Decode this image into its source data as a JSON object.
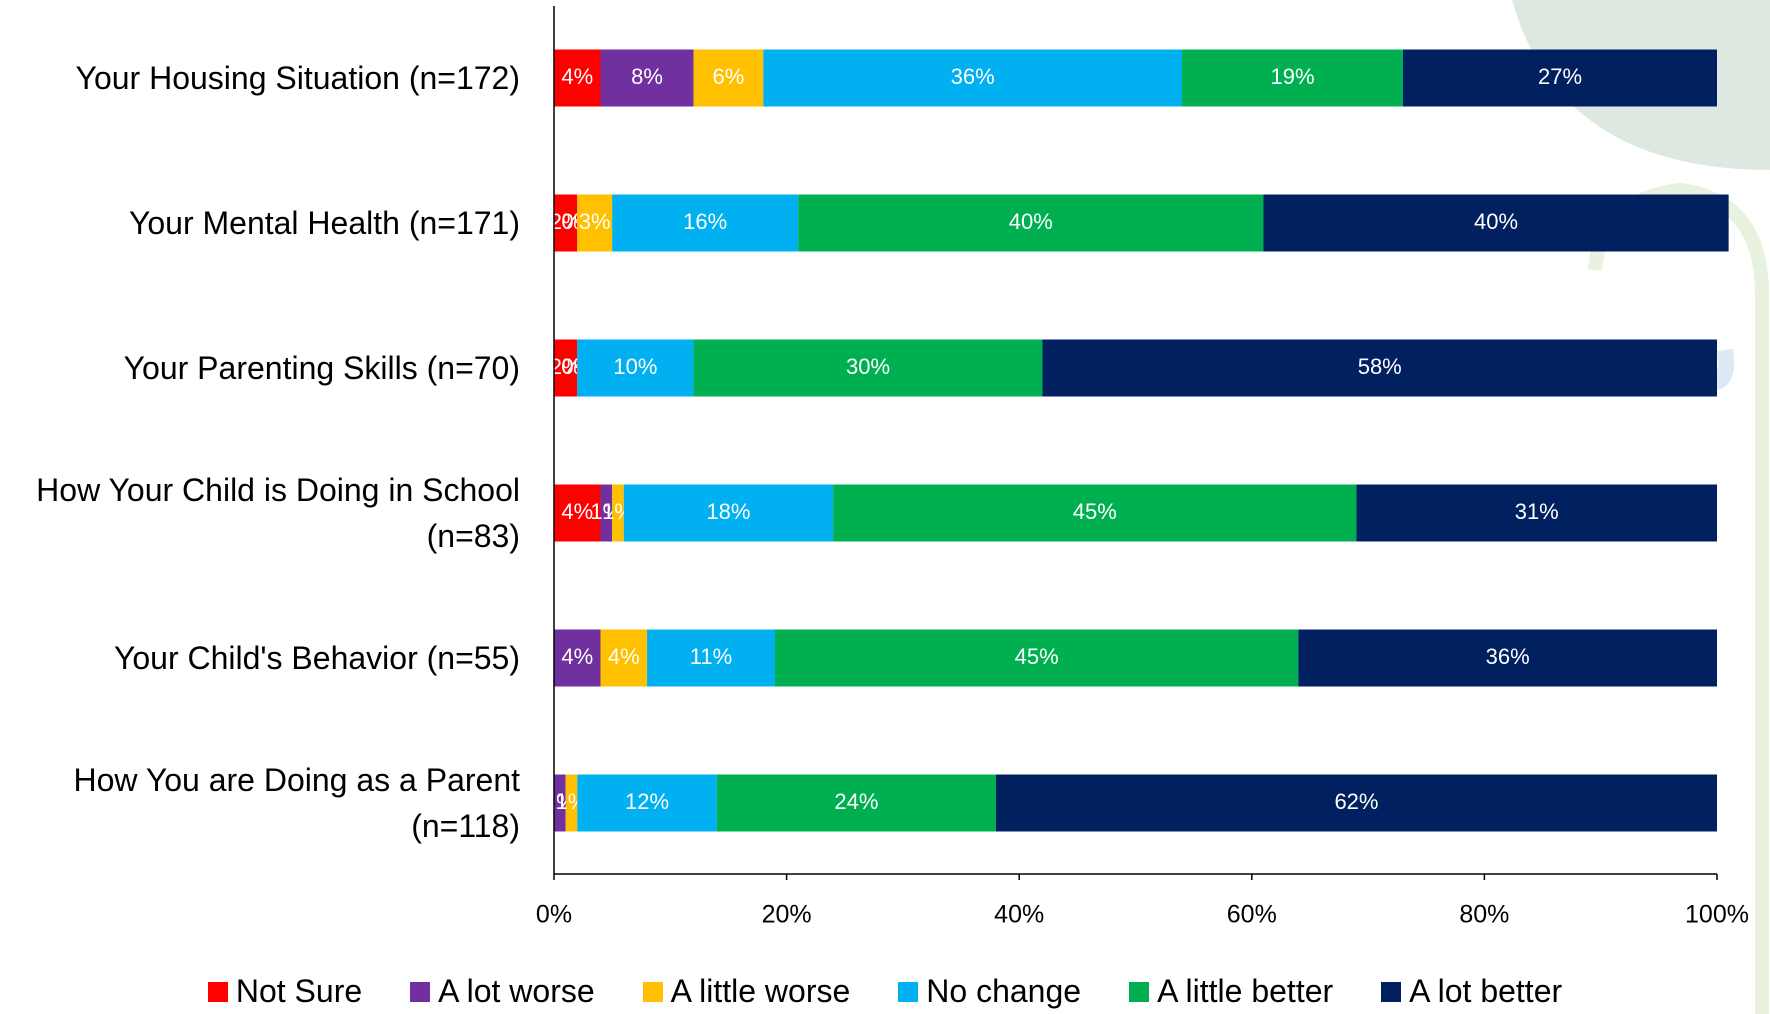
{
  "chart_data": {
    "type": "stacked-bar-horizontal",
    "categories": [
      "Your Housing Situation (n=172)",
      "Your Mental Health (n=171)",
      "Your Parenting Skills (n=70)",
      "How Your Child is Doing in School (n=83)",
      "Your Child's Behavior (n=55)",
      "How You are Doing as a Parent (n=118)"
    ],
    "series": [
      {
        "name": "Not Sure",
        "color": "#ff0000",
        "values": [
          4,
          2,
          2,
          4,
          0,
          0
        ],
        "value_labels": [
          "4%",
          "2%",
          "2%",
          "4%",
          "0%",
          "0%"
        ]
      },
      {
        "name": "A lot worse",
        "color": "#7030a0",
        "values": [
          8,
          0,
          0,
          1,
          4,
          1
        ],
        "value_labels": [
          "8%",
          "0%",
          "0%",
          "1%",
          "4%",
          "1%"
        ]
      },
      {
        "name": "A little worse",
        "color": "#ffc000",
        "values": [
          6,
          3,
          0,
          1,
          4,
          1
        ],
        "value_labels": [
          "6%",
          "3%",
          "0%",
          "1%",
          "4%",
          "1%"
        ]
      },
      {
        "name": "No change",
        "color": "#00b0f0",
        "values": [
          36,
          16,
          10,
          18,
          11,
          12
        ],
        "value_labels": [
          "36%",
          "16%",
          "10%",
          "18%",
          "11%",
          "12%"
        ]
      },
      {
        "name": "A little better",
        "color": "#00b050",
        "values": [
          19,
          40,
          30,
          45,
          45,
          24
        ],
        "value_labels": [
          "19%",
          "40%",
          "30%",
          "45%",
          "45%",
          "24%"
        ]
      },
      {
        "name": "A lot better",
        "color": "#002060",
        "values": [
          27,
          40,
          58,
          31,
          36,
          62
        ],
        "value_labels": [
          "27%",
          "40%",
          "58%",
          "31%",
          "36%",
          "62%"
        ]
      }
    ],
    "xlim": [
      0,
      100
    ],
    "xticks": [
      {
        "value": 0,
        "label": "0%"
      },
      {
        "value": 20,
        "label": "20%"
      },
      {
        "value": 40,
        "label": "40%"
      },
      {
        "value": 60,
        "label": "60%"
      },
      {
        "value": 80,
        "label": "80%"
      },
      {
        "value": 100,
        "label": "100%"
      }
    ],
    "legend": "bottom"
  }
}
